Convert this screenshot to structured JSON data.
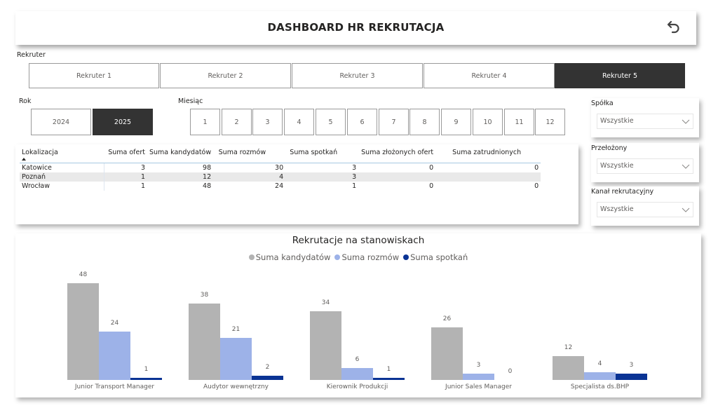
{
  "header": {
    "title": "DASHBOARD HR REKRUTACJA",
    "back_icon": "undo-arrow-icon"
  },
  "slicers": {
    "rekruter": {
      "label": "Rekruter",
      "items": [
        "Rekruter 1",
        "Rekruter 2",
        "Rekruter 3",
        "Rekruter 4",
        "Rekruter 5"
      ],
      "selected": "Rekruter 5"
    },
    "rok": {
      "label": "Rok",
      "items": [
        "2024",
        "2025"
      ],
      "selected": "2025"
    },
    "miesiac": {
      "label": "Miesiąc",
      "items": [
        "1",
        "2",
        "3",
        "4",
        "5",
        "6",
        "7",
        "8",
        "9",
        "10",
        "11",
        "12"
      ]
    },
    "spolka": {
      "label": "Spółka",
      "value": "Wszystkie"
    },
    "przelozony": {
      "label": "Przełożony",
      "value": "Wszystkie"
    },
    "kanal": {
      "label": "Kanał rekrutacyjny",
      "value": "Wszystkie"
    }
  },
  "table": {
    "columns": [
      "Lokalizacja",
      "Suma ofert",
      "Suma kandydatów",
      "Suma rozmów",
      "Suma spotkań",
      "Suma złożonych ofert",
      "Suma zatrudnionych"
    ],
    "rows": [
      [
        "Katowice",
        "3",
        "98",
        "30",
        "3",
        "0",
        "0"
      ],
      [
        "Poznań",
        "1",
        "12",
        "4",
        "3",
        "",
        ""
      ],
      [
        "Wrocław",
        "1",
        "48",
        "24",
        "1",
        "0",
        "0"
      ]
    ]
  },
  "chart": {
    "title": "Rekrutacje na stanowiskach",
    "legend": [
      "Suma kandydatów",
      "Suma rozmów",
      "Suma spotkań"
    ],
    "colors": [
      "#b3b3b3",
      "#9db2e8",
      "#0a3394"
    ]
  },
  "chart_data": {
    "type": "bar",
    "title": "Rekrutacje na stanowiskach",
    "categories": [
      "Junior Transport Manager",
      "Audytor wewnętrzny",
      "Kierownik Produkcji",
      "Junior Sales Manager",
      "Specjalista ds.BHP"
    ],
    "series": [
      {
        "name": "Suma kandydatów",
        "color": "#b3b3b3",
        "values": [
          48,
          38,
          34,
          26,
          12
        ]
      },
      {
        "name": "Suma rozmów",
        "color": "#9db2e8",
        "values": [
          24,
          21,
          6,
          3,
          4
        ]
      },
      {
        "name": "Suma spotkań",
        "color": "#0a3394",
        "values": [
          1,
          2,
          1,
          0,
          3
        ]
      }
    ],
    "xlabel": "",
    "ylabel": "",
    "grid": false,
    "legend_position": "top-center",
    "data_labels": true
  }
}
